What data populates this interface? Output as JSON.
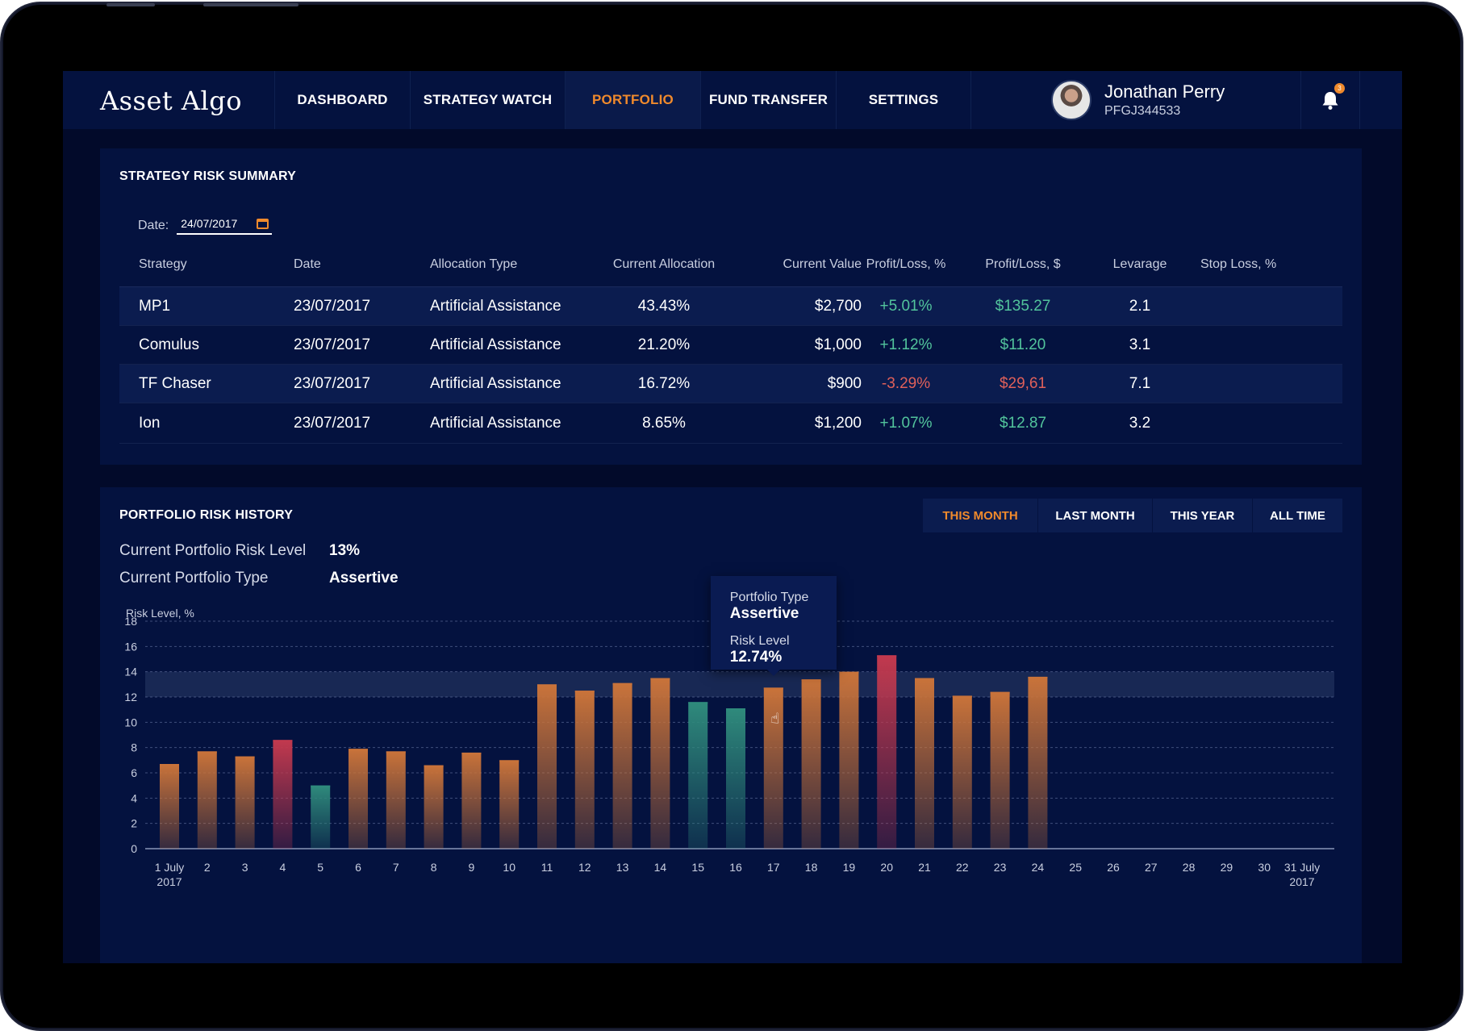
{
  "app": {
    "name": "Asset Algo"
  },
  "nav": {
    "items": [
      {
        "label": "DASHBOARD"
      },
      {
        "label": "STRATEGY WATCH"
      },
      {
        "label": "PORTFOLIO",
        "active": true
      },
      {
        "label": "FUND TRANSFER"
      },
      {
        "label": "SETTINGS"
      }
    ],
    "user": {
      "name": "Jonathan Perry",
      "id": "PFGJ344533"
    },
    "notifications_count": "3"
  },
  "colors": {
    "accent": "#f08a2c",
    "gain": "#52c49c",
    "loss": "#e0605a",
    "background": "#020a2a",
    "panel": "#04123f",
    "bar_normal": "#c9733a",
    "bar_low": "#2f8a7c",
    "bar_high": "#c2394e"
  },
  "summary": {
    "title": "STRATEGY RISK SUMMARY",
    "date_label": "Date:",
    "date_value": "24/07/2017",
    "columns": [
      "Strategy",
      "Date",
      "Allocation Type",
      "Current Allocation",
      "Current Value",
      "Profit/Loss, %",
      "Profit/Loss, $",
      "Levarage",
      "Stop Loss, %"
    ],
    "rows": [
      {
        "strategy": "MP1",
        "date": "23/07/2017",
        "type": "Artificial Assistance",
        "allocation": "43.43%",
        "value": "$2,700",
        "pl_pct": "+5.01%",
        "pl_usd": "$135.27",
        "leverage": "2.1",
        "stop_loss": "",
        "trend": "gain"
      },
      {
        "strategy": "Comulus",
        "date": "23/07/2017",
        "type": "Artificial Assistance",
        "allocation": "21.20%",
        "value": "$1,000",
        "pl_pct": "+1.12%",
        "pl_usd": "$11.20",
        "leverage": "3.1",
        "stop_loss": "",
        "trend": "gain"
      },
      {
        "strategy": "TF Chaser",
        "date": "23/07/2017",
        "type": "Artificial Assistance",
        "allocation": "16.72%",
        "value": "$900",
        "pl_pct": "-3.29%",
        "pl_usd": "$29,61",
        "leverage": "7.1",
        "stop_loss": "",
        "trend": "loss"
      },
      {
        "strategy": "Ion",
        "date": "23/07/2017",
        "type": "Artificial Assistance",
        "allocation": "8.65%",
        "value": "$1,200",
        "pl_pct": "+1.07%",
        "pl_usd": "$12.87",
        "leverage": "3.2",
        "stop_loss": "",
        "trend": "gain"
      }
    ]
  },
  "history": {
    "title": "PORTFOLIO RISK HISTORY",
    "tabs": [
      {
        "label": "THIS MONTH",
        "active": true
      },
      {
        "label": "LAST MONTH"
      },
      {
        "label": "THIS YEAR"
      },
      {
        "label": "ALL TIME"
      }
    ],
    "risk_level_label": "Current Portfolio Risk Level",
    "risk_level_value": "13%",
    "type_label": "Current Portfolio Type",
    "type_value": "Assertive",
    "tooltip": {
      "type_label": "Portfolio Type",
      "type_value": "Assertive",
      "risk_label": "Risk Level",
      "risk_value": "12.74%"
    }
  },
  "chart_data": {
    "type": "bar",
    "ylabel": "Risk Level, %",
    "ylim": [
      0,
      18
    ],
    "yticks": [
      0,
      2,
      4,
      6,
      8,
      10,
      12,
      14,
      16,
      18
    ],
    "grid": true,
    "target_band": [
      12,
      14
    ],
    "categories": [
      "1 July\n2017",
      "2",
      "3",
      "4",
      "5",
      "6",
      "7",
      "8",
      "9",
      "10",
      "11",
      "12",
      "13",
      "14",
      "15",
      "16",
      "17",
      "18",
      "19",
      "20",
      "21",
      "22",
      "23",
      "24",
      "25",
      "26",
      "27",
      "28",
      "29",
      "30",
      "31 July\n2017"
    ],
    "values": [
      6.7,
      7.7,
      7.3,
      8.6,
      5.0,
      7.9,
      7.7,
      6.6,
      7.6,
      7.0,
      13.0,
      12.5,
      13.1,
      13.5,
      11.6,
      11.1,
      12.74,
      13.4,
      14.0,
      15.3,
      13.5,
      12.1,
      12.4,
      13.6,
      null,
      null,
      null,
      null,
      null,
      null,
      null
    ],
    "status": [
      "normal",
      "normal",
      "normal",
      "high",
      "low",
      "normal",
      "normal",
      "normal",
      "normal",
      "normal",
      "normal",
      "normal",
      "normal",
      "normal",
      "low",
      "low",
      "normal",
      "normal",
      "normal",
      "high",
      "normal",
      "normal",
      "normal",
      "normal",
      null,
      null,
      null,
      null,
      null,
      null,
      null
    ],
    "highlighted_index": 16
  }
}
